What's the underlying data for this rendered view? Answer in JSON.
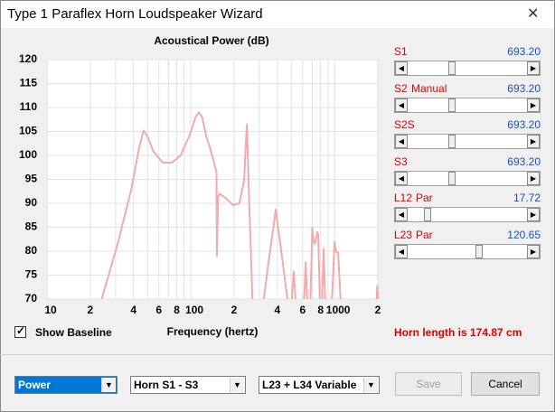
{
  "window": {
    "title": "Type 1 Paraflex Horn Loudspeaker Wizard"
  },
  "chart_data": {
    "type": "line",
    "title": "Acoustical Power (dB)",
    "x_label": "Frequency (hertz)",
    "x": [
      24,
      31,
      38.5,
      44,
      47,
      50,
      55,
      64,
      74,
      85,
      99,
      108,
      114,
      120,
      128,
      137,
      148,
      151,
      152,
      155,
      159,
      176,
      197,
      218,
      235,
      243,
      246,
      249,
      255,
      262,
      268,
      null,
      322,
      345,
      362,
      380,
      390,
      400,
      420,
      470,
      null,
      505,
      520,
      535,
      null,
      615,
      630,
      645,
      null,
      680,
      700,
      715,
      730,
      760,
      770,
      790,
      null,
      820,
      840,
      860,
      null,
      960,
      1000,
      1020,
      1060,
      1100,
      null,
      1960,
      1985,
      2000
    ],
    "values": [
      70,
      81.5,
      92.8,
      102,
      105.2,
      104,
      100.8,
      98.5,
      98.5,
      100,
      104.5,
      108,
      109,
      108,
      104,
      101.3,
      97.5,
      96.5,
      79,
      91.5,
      92,
      91,
      89.6,
      90,
      94.7,
      104,
      106.5,
      100,
      90,
      80,
      70,
      null,
      70,
      77,
      81.5,
      86,
      88.7,
      86,
      81.5,
      70,
      null,
      70,
      75.8,
      70,
      null,
      70,
      77.7,
      70,
      null,
      70,
      84.9,
      82,
      81.5,
      84,
      83.4,
      70,
      null,
      70,
      80.5,
      70,
      null,
      70,
      81.9,
      80,
      79.6,
      70,
      null,
      70,
      72.8,
      70
    ],
    "color": "#f2aaaa",
    "x_scale": "log",
    "grid": true,
    "xlim": [
      10,
      2000
    ],
    "ylim": [
      70,
      120
    ],
    "xticks": [
      10,
      {
        "value": 20,
        "label": "2"
      },
      {
        "value": 40,
        "label": "4"
      },
      {
        "value": 60,
        "label": "6"
      },
      {
        "value": 80,
        "label": "8"
      },
      100,
      {
        "value": 200,
        "label": "2"
      },
      {
        "value": 400,
        "label": "4"
      },
      {
        "value": 600,
        "label": "6"
      },
      {
        "value": 800,
        "label": "8"
      },
      1000,
      {
        "value": 2000,
        "label": "2"
      }
    ],
    "x_minor_grid": [
      30,
      50,
      70,
      90,
      300,
      500,
      700,
      900
    ],
    "yticks": [
      70,
      75,
      80,
      85,
      90,
      95,
      100,
      105,
      110,
      115,
      120
    ]
  },
  "sliders": [
    {
      "label": "S1",
      "value": "693.20"
    },
    {
      "label": "S2",
      "mode": "Manual",
      "value": "693.20"
    },
    {
      "label": "S2S",
      "value": "693.20"
    },
    {
      "label": "S3",
      "value": "693.20"
    },
    {
      "label": "L12",
      "mode": "Par",
      "value": "17.72"
    },
    {
      "label": "L23",
      "mode": "Par",
      "value": "120.65"
    }
  ],
  "show_baseline": {
    "label": "Show Baseline",
    "checked": true
  },
  "horn_length": "Horn length is 174.87 cm",
  "dropdowns": [
    "Power",
    "Horn S1 - S3",
    "L23 + L34 Variable"
  ],
  "buttons": {
    "save": "Save",
    "cancel": "Cancel"
  }
}
